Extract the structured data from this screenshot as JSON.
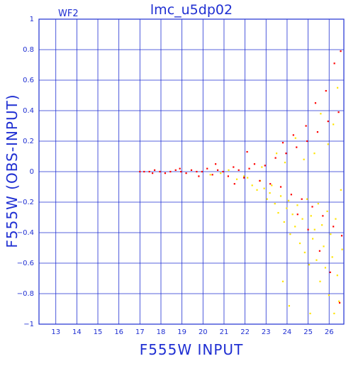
{
  "chart_data": {
    "type": "scatter",
    "title": "lmc_u5dp02",
    "panel_label": "WF2",
    "xlabel": "F555W INPUT",
    "ylabel": "F555W (OBS-INPUT)",
    "xlim": [
      12.2,
      26.7
    ],
    "ylim": [
      -1,
      1
    ],
    "x_ticks": [
      13,
      14,
      15,
      16,
      17,
      18,
      19,
      20,
      21,
      22,
      23,
      24,
      25,
      26
    ],
    "y_ticks": [
      1,
      0.8,
      0.6,
      0.4,
      0.2,
      0,
      -0.2,
      -0.4,
      -0.6,
      -0.8,
      -1
    ],
    "x_tick_labels": [
      "13",
      "14",
      "15",
      "16",
      "17",
      "18",
      "19",
      "20",
      "21",
      "22",
      "23",
      "24",
      "25",
      "26"
    ],
    "y_tick_labels": [
      "1",
      "0.8",
      "0.6",
      "0.4",
      "0.2",
      "0",
      "−0.2",
      "−0.4",
      "−0.6",
      "−0.8",
      "−1"
    ],
    "grid": true,
    "series": [
      {
        "color": "#ffe400",
        "values": [
          [
            20.35,
            -0.02
          ],
          [
            20.84,
            -0.01
          ],
          [
            21.22,
            0.01
          ],
          [
            21.61,
            -0.05
          ],
          [
            21.95,
            -0.03
          ],
          [
            22.12,
            -0.04
          ],
          [
            22.34,
            -0.09
          ],
          [
            22.57,
            -0.12
          ],
          [
            22.72,
            -0.06
          ],
          [
            22.91,
            -0.11
          ],
          [
            23.05,
            -0.18
          ],
          [
            23.18,
            -0.14
          ],
          [
            23.27,
            -0.09
          ],
          [
            23.42,
            -0.21
          ],
          [
            23.58,
            -0.27
          ],
          [
            23.7,
            -0.16
          ],
          [
            23.86,
            -0.33
          ],
          [
            23.98,
            -0.24
          ],
          [
            24.07,
            -0.19
          ],
          [
            24.15,
            -0.41
          ],
          [
            24.26,
            -0.28
          ],
          [
            24.38,
            -0.36
          ],
          [
            24.49,
            -0.22
          ],
          [
            24.61,
            -0.47
          ],
          [
            24.73,
            -0.31
          ],
          [
            24.84,
            -0.53
          ],
          [
            24.95,
            -0.18
          ],
          [
            25.05,
            -0.61
          ],
          [
            25.14,
            -0.29
          ],
          [
            25.22,
            -0.44
          ],
          [
            25.31,
            -0.38
          ],
          [
            25.4,
            -0.58
          ],
          [
            25.48,
            -0.21
          ],
          [
            25.57,
            -0.72
          ],
          [
            25.66,
            -0.35
          ],
          [
            25.74,
            -0.49
          ],
          [
            25.82,
            -0.63
          ],
          [
            25.91,
            -0.26
          ],
          [
            25.99,
            -0.81
          ],
          [
            26.07,
            -0.41
          ],
          [
            26.15,
            -0.56
          ],
          [
            26.24,
            -0.93
          ],
          [
            26.31,
            -0.31
          ],
          [
            26.39,
            -0.68
          ],
          [
            26.47,
            -0.85
          ],
          [
            26.56,
            -0.12
          ],
          [
            26.62,
            -0.51
          ],
          [
            25.95,
            0.18
          ],
          [
            26.2,
            0.31
          ],
          [
            25.3,
            0.12
          ],
          [
            24.8,
            0.08
          ],
          [
            23.9,
            0.06
          ],
          [
            22.8,
            0.03
          ],
          [
            23.5,
            0.12
          ],
          [
            24.4,
            0.22
          ],
          [
            25.6,
            0.38
          ],
          [
            26.4,
            0.55
          ],
          [
            25.1,
            -0.93
          ],
          [
            24.1,
            -0.88
          ],
          [
            23.8,
            -0.72
          ]
        ]
      },
      {
        "color": "#ff0000",
        "values": [
          [
            17.0,
            0.0
          ],
          [
            17.2,
            0.0
          ],
          [
            17.45,
            0.0
          ],
          [
            17.7,
            0.01
          ],
          [
            17.95,
            0.0
          ],
          [
            18.2,
            -0.01
          ],
          [
            18.45,
            0.0
          ],
          [
            18.7,
            0.01
          ],
          [
            18.95,
            0.0
          ],
          [
            19.2,
            -0.01
          ],
          [
            19.45,
            0.01
          ],
          [
            19.7,
            0.0
          ],
          [
            19.95,
            0.0
          ],
          [
            20.2,
            0.02
          ],
          [
            20.45,
            -0.02
          ],
          [
            20.7,
            0.01
          ],
          [
            20.95,
            0.0
          ],
          [
            21.2,
            -0.03
          ],
          [
            21.45,
            0.03
          ],
          [
            21.7,
            0.01
          ],
          [
            21.95,
            -0.04
          ],
          [
            22.2,
            0.02
          ],
          [
            22.45,
            0.05
          ],
          [
            22.7,
            -0.06
          ],
          [
            22.95,
            0.04
          ],
          [
            23.2,
            -0.08
          ],
          [
            23.45,
            0.09
          ],
          [
            23.7,
            -0.1
          ],
          [
            23.95,
            0.12
          ],
          [
            24.2,
            -0.15
          ],
          [
            24.45,
            0.16
          ],
          [
            24.7,
            -0.18
          ],
          [
            24.95,
            0.2
          ],
          [
            25.2,
            -0.23
          ],
          [
            25.45,
            0.26
          ],
          [
            25.7,
            -0.29
          ],
          [
            25.95,
            0.33
          ],
          [
            26.2,
            -0.36
          ],
          [
            26.45,
            0.39
          ],
          [
            26.6,
            -0.42
          ],
          [
            23.8,
            0.19
          ],
          [
            24.3,
            0.24
          ],
          [
            24.9,
            0.3
          ],
          [
            25.35,
            0.45
          ],
          [
            25.85,
            0.53
          ],
          [
            26.25,
            0.71
          ],
          [
            26.55,
            0.79
          ],
          [
            24.5,
            -0.28
          ],
          [
            25.0,
            -0.38
          ],
          [
            25.55,
            -0.52
          ],
          [
            26.05,
            -0.66
          ],
          [
            26.5,
            -0.86
          ],
          [
            22.1,
            0.13
          ],
          [
            21.5,
            -0.08
          ],
          [
            20.6,
            0.05
          ],
          [
            19.8,
            -0.03
          ],
          [
            18.9,
            0.02
          ],
          [
            17.6,
            -0.01
          ]
        ]
      }
    ]
  }
}
